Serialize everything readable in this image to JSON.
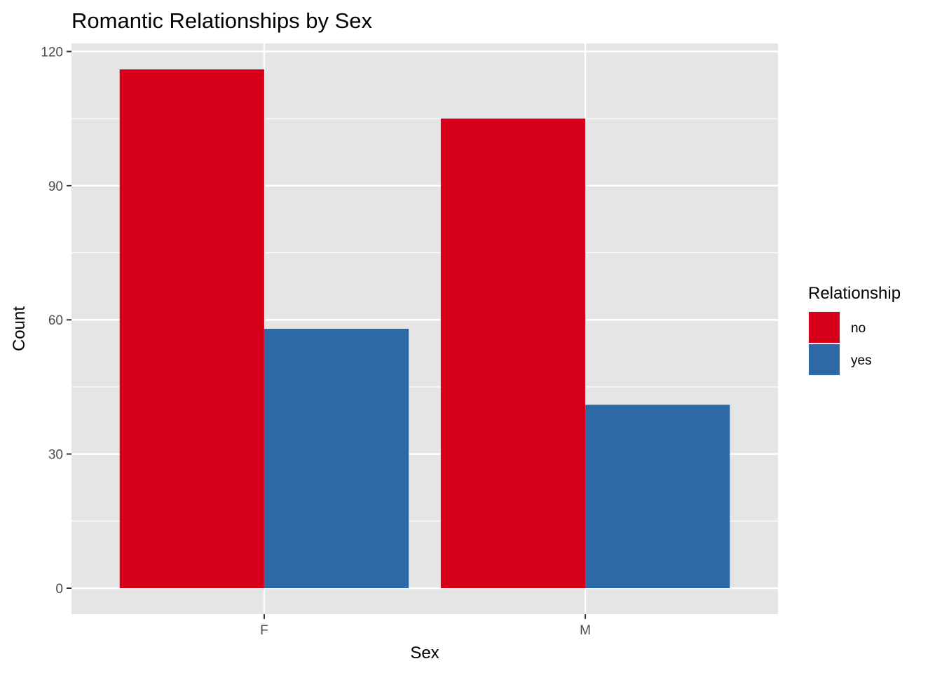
{
  "chart_data": {
    "type": "bar",
    "title": "Romantic Relationships by Sex",
    "xlabel": "Sex",
    "ylabel": "Count",
    "categories": [
      "F",
      "M"
    ],
    "series": [
      {
        "name": "no",
        "values": [
          116,
          105
        ],
        "color": "#D7001A"
      },
      {
        "name": "yes",
        "values": [
          58,
          41
        ],
        "color": "#2D69A6"
      }
    ],
    "ylim": [
      -5.8,
      121.8
    ],
    "yticks": [
      0,
      30,
      60,
      90,
      120
    ],
    "legend": {
      "title": "Relationship",
      "position": "right"
    },
    "grid": true,
    "panel_background": "#E5E5E5",
    "grid_color": "#FFFFFF"
  }
}
